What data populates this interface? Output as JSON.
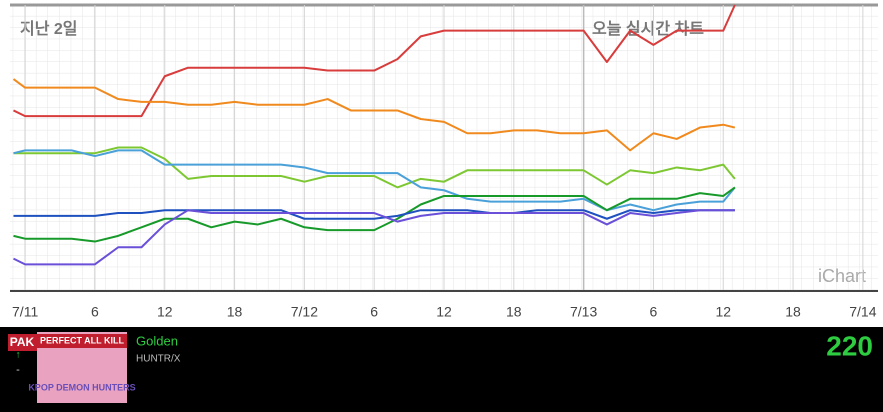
{
  "chart_data": {
    "type": "line",
    "annotations": {
      "past": "지난 2일",
      "live": "오늘 실시간 차트",
      "watermark": "iChart"
    },
    "x": [
      -1,
      0,
      2,
      4,
      6,
      8,
      10,
      12,
      14,
      16,
      18,
      20,
      22,
      24,
      26,
      28,
      30,
      32,
      34,
      36,
      38,
      40,
      42,
      44,
      46,
      48,
      50,
      52,
      54,
      56,
      58,
      60,
      61
    ],
    "xlim": [
      -1.3,
      73.3
    ],
    "xticks": [
      {
        "value": 0,
        "label": "7/11"
      },
      {
        "value": 6,
        "label": "6"
      },
      {
        "value": 12,
        "label": "12"
      },
      {
        "value": 18,
        "label": "18"
      },
      {
        "value": 24,
        "label": "7/12"
      },
      {
        "value": 30,
        "label": "6"
      },
      {
        "value": 36,
        "label": "12"
      },
      {
        "value": 42,
        "label": "18"
      },
      {
        "value": 48,
        "label": "7/13"
      },
      {
        "value": 54,
        "label": "6"
      },
      {
        "value": 60,
        "label": "12"
      },
      {
        "value": 66,
        "label": "18"
      },
      {
        "value": 72,
        "label": "7/14"
      }
    ],
    "ylim": [
      0,
      100
    ],
    "live_from": 48,
    "series": [
      {
        "color": "#d83c3c",
        "values": [
          63,
          61,
          61,
          61,
          61,
          61,
          61,
          75,
          78,
          78,
          78,
          78,
          78,
          78,
          77,
          77,
          77,
          81,
          89,
          91,
          91,
          91,
          91,
          91,
          91,
          91,
          80,
          91,
          86,
          91,
          91,
          91,
          100
        ]
      },
      {
        "color": "#f08a1e",
        "values": [
          74,
          71,
          71,
          71,
          71,
          67,
          66,
          66,
          65,
          65,
          66,
          65,
          65,
          65,
          67,
          63,
          63,
          63,
          60,
          59,
          55,
          55,
          56,
          56,
          55,
          55,
          56,
          49,
          55,
          53,
          57,
          58,
          57
        ]
      },
      {
        "color": "#7dc832",
        "values": [
          48,
          48,
          48,
          48,
          48,
          50,
          50,
          46,
          39,
          40,
          40,
          40,
          40,
          38,
          40,
          40,
          40,
          36,
          39,
          38,
          42,
          42,
          42,
          42,
          42,
          42,
          37,
          42,
          41,
          43,
          42,
          44,
          39
        ]
      },
      {
        "color": "#4aa0d8",
        "values": [
          48,
          49,
          49,
          49,
          47,
          49,
          49,
          44,
          44,
          44,
          44,
          44,
          44,
          43,
          41,
          41,
          41,
          41,
          36,
          35,
          32,
          31,
          31,
          31,
          31,
          32,
          28,
          30,
          28,
          30,
          31,
          31,
          36
        ]
      },
      {
        "color": "#179a2a",
        "values": [
          19,
          18,
          18,
          18,
          17,
          19,
          22,
          25,
          25,
          22,
          24,
          23,
          25,
          22,
          21,
          21,
          21,
          25,
          30,
          33,
          33,
          33,
          33,
          33,
          33,
          33,
          28,
          32,
          32,
          32,
          34,
          33,
          36
        ]
      },
      {
        "color": "#1e50c0",
        "values": [
          26,
          26,
          26,
          26,
          26,
          27,
          27,
          28,
          28,
          28,
          28,
          28,
          28,
          25,
          25,
          25,
          25,
          26,
          28,
          28,
          28,
          27,
          27,
          28,
          28,
          28,
          25,
          28,
          27,
          28,
          28,
          28,
          28
        ]
      },
      {
        "color": "#6a4fd8",
        "values": [
          11,
          9,
          9,
          9,
          9,
          15,
          15,
          23,
          28,
          27,
          27,
          27,
          27,
          27,
          27,
          27,
          27,
          24,
          26,
          27,
          27,
          27,
          27,
          27,
          27,
          27,
          23,
          27,
          26,
          27,
          28,
          28,
          28
        ]
      }
    ]
  },
  "now_playing": {
    "badge": "PAK",
    "cover_banner": "PERFECT ALL KILL",
    "cover_title": "KPOP DEMON HUNTERS",
    "change_up": "↑",
    "change_flat": "-",
    "title": "Golden",
    "artist": "HUNTR/X",
    "score": "220"
  }
}
